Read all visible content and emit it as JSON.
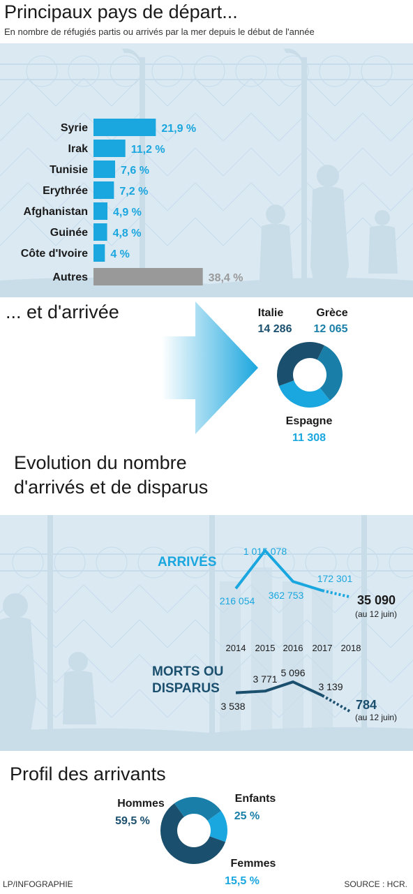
{
  "section1": {
    "title": "Principaux pays de départ...",
    "subtitle": "En nombre de réfugiés partis ou arrivés par la mer depuis le début de l'année"
  },
  "section2": {
    "title": "... et d'arrivée"
  },
  "section3": {
    "title_line1": "Evolution du nombre",
    "title_line2": "d'arrivés et de disparus"
  },
  "section4": {
    "title": "Profil des arrivants"
  },
  "footer": {
    "left": "LP/INFOGRAPHIE",
    "right": "SOURCE : HCR."
  },
  "colors": {
    "accent": "#1aa6de",
    "dark": "#1b4f6e",
    "mid": "#1a7fa8",
    "grey": "#999999",
    "bg": "#dbe9f3"
  },
  "chart_data": [
    {
      "type": "bar",
      "orientation": "horizontal",
      "categories": [
        "Syrie",
        "Irak",
        "Tunisie",
        "Erythrée",
        "Afghanistan",
        "Guinée",
        "Côte d'Ivoire",
        "Autres"
      ],
      "values": [
        21.9,
        11.2,
        7.6,
        7.2,
        4.9,
        4.8,
        4,
        38.4
      ],
      "labels": [
        "21,9 %",
        "11,2 %",
        "7,6 %",
        "7,2 %",
        "4,9 %",
        "4,8 %",
        "4 %",
        "38,4 %"
      ]
    },
    {
      "type": "pie",
      "categories": [
        "Italie",
        "Grèce",
        "Espagne"
      ],
      "values": [
        14286,
        12065,
        11308
      ],
      "labels": [
        "14 286",
        "12 065",
        "11 308"
      ]
    },
    {
      "type": "line",
      "x": [
        "2014",
        "2015",
        "2016",
        "2017",
        "2018"
      ],
      "series": [
        {
          "name": "ARRIVÉS",
          "values": [
            216054,
            1015078,
            362753,
            172301,
            35090
          ],
          "labels": [
            "216 054",
            "1 015 078",
            "362 753",
            "172 301",
            "35 090"
          ]
        },
        {
          "name": "MORTS OU DISPARUS",
          "values": [
            3538,
            3771,
            5096,
            3139,
            784
          ],
          "labels": [
            "3 538",
            "3 771",
            "5 096",
            "3 139",
            "784"
          ]
        }
      ],
      "annotations": [
        "(au 12 juin)",
        "(au 12 juin)"
      ]
    },
    {
      "type": "pie",
      "categories": [
        "Hommes",
        "Enfants",
        "Femmes"
      ],
      "values": [
        59.5,
        25,
        15.5
      ],
      "labels": [
        "59,5 %",
        "25 %",
        "15,5 %"
      ]
    }
  ]
}
